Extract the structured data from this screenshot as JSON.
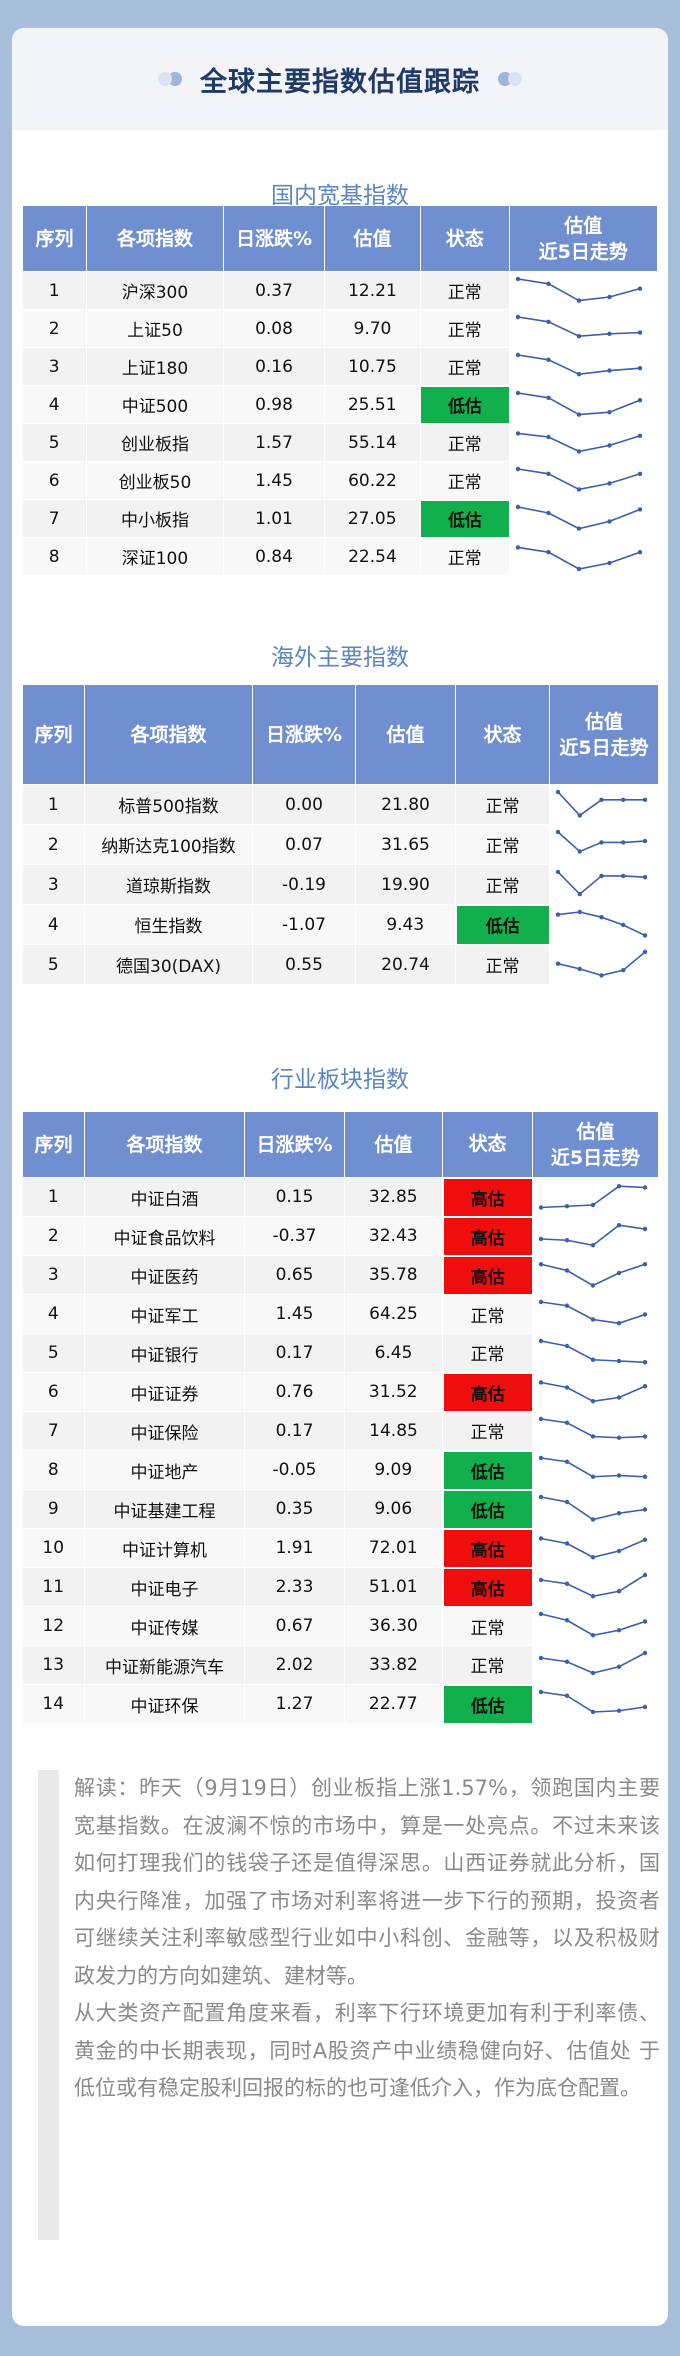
{
  "title": "全球主要指数估值跟踪",
  "sections": [
    {
      "key": "domestic",
      "title": "国内宽基指数",
      "columns": [
        "序列",
        "各项指数",
        "日涨跌%",
        "估值",
        "状态",
        "估值\n近5日走势"
      ],
      "rows": [
        {
          "no": "1",
          "name": "沪深300",
          "change": "0.37",
          "valuation": "12.21",
          "status": "正常",
          "trend": [
            3,
            2.6,
            1.2,
            1.5,
            2.2
          ]
        },
        {
          "no": "2",
          "name": "上证50",
          "change": "0.08",
          "valuation": "9.70",
          "status": "正常",
          "trend": [
            3,
            2.6,
            1.4,
            1.6,
            1.7
          ]
        },
        {
          "no": "3",
          "name": "上证180",
          "change": "0.16",
          "valuation": "10.75",
          "status": "正常",
          "trend": [
            3,
            2.6,
            1.4,
            1.7,
            1.9
          ]
        },
        {
          "no": "4",
          "name": "中证500",
          "change": "0.98",
          "valuation": "25.51",
          "status": "低估",
          "trend": [
            3,
            2.6,
            1.2,
            1.4,
            2.4
          ]
        },
        {
          "no": "5",
          "name": "创业板指",
          "change": "1.57",
          "valuation": "55.14",
          "status": "正常",
          "trend": [
            2.8,
            2.5,
            1.3,
            1.8,
            2.6
          ]
        },
        {
          "no": "6",
          "name": "创业板50",
          "change": "1.45",
          "valuation": "60.22",
          "status": "正常",
          "trend": [
            3,
            2.6,
            1.3,
            1.8,
            2.6
          ]
        },
        {
          "no": "7",
          "name": "中小板指",
          "change": "1.01",
          "valuation": "27.05",
          "status": "低估",
          "trend": [
            3,
            2.5,
            1.2,
            1.8,
            2.8
          ]
        },
        {
          "no": "8",
          "name": "深证100",
          "change": "0.84",
          "valuation": "22.54",
          "status": "正常",
          "trend": [
            2.8,
            2.4,
            1.0,
            1.5,
            2.4
          ]
        }
      ]
    },
    {
      "key": "overseas",
      "title": "海外主要指数",
      "columns": [
        "序列",
        "各项指数",
        "日涨跌%",
        "估值",
        "状态",
        "估值\n近5日走势"
      ],
      "rows": [
        {
          "no": "1",
          "name": "标普500指数",
          "change": "0.00",
          "valuation": "21.80",
          "status": "正常",
          "trend": [
            3,
            1.2,
            2.4,
            2.4,
            2.4
          ]
        },
        {
          "no": "2",
          "name": "纳斯达克100指数",
          "change": "0.07",
          "valuation": "31.65",
          "status": "正常",
          "trend": [
            3,
            1.5,
            2.2,
            2.2,
            2.3
          ]
        },
        {
          "no": "3",
          "name": "道琼斯指数",
          "change": "-0.19",
          "valuation": "19.90",
          "status": "正常",
          "trend": [
            3,
            1.3,
            2.7,
            2.7,
            2.6
          ]
        },
        {
          "no": "4",
          "name": "恒生指数",
          "change": "-1.07",
          "valuation": "9.43",
          "status": "低估",
          "trend": [
            2.8,
            3,
            2.6,
            2.0,
            1.2
          ]
        },
        {
          "no": "5",
          "name": "德国30(DAX)",
          "change": "0.55",
          "valuation": "20.74",
          "status": "正常",
          "trend": [
            2.1,
            1.7,
            1.2,
            1.6,
            3
          ]
        }
      ]
    },
    {
      "key": "industry",
      "title": "行业板块指数",
      "columns": [
        "序列",
        "各项指数",
        "日涨跌%",
        "估值",
        "状态",
        "估值\n近5日走势"
      ],
      "rows": [
        {
          "no": "1",
          "name": "中证白酒",
          "change": "0.15",
          "valuation": "32.85",
          "status": "高估",
          "trend": [
            1.2,
            1.3,
            1.4,
            2.9,
            2.8
          ]
        },
        {
          "no": "2",
          "name": "中证食品饮料",
          "change": "-0.37",
          "valuation": "32.43",
          "status": "高估",
          "trend": [
            1.8,
            1.7,
            1.3,
            2.9,
            2.6
          ]
        },
        {
          "no": "3",
          "name": "中证医药",
          "change": "0.65",
          "valuation": "35.78",
          "status": "高估",
          "trend": [
            2.9,
            2.4,
            1.2,
            2.2,
            2.9
          ]
        },
        {
          "no": "4",
          "name": "中证军工",
          "change": "1.45",
          "valuation": "64.25",
          "status": "正常",
          "trend": [
            3,
            2.7,
            1.6,
            1.3,
            2.0
          ]
        },
        {
          "no": "5",
          "name": "中证银行",
          "change": "0.17",
          "valuation": "6.45",
          "status": "正常",
          "trend": [
            3,
            2.6,
            1.5,
            1.4,
            1.3
          ]
        },
        {
          "no": "6",
          "name": "中证证券",
          "change": "0.76",
          "valuation": "31.52",
          "status": "高估",
          "trend": [
            2.8,
            2.4,
            1.3,
            1.6,
            2.5
          ]
        },
        {
          "no": "7",
          "name": "中证保险",
          "change": "0.17",
          "valuation": "14.85",
          "status": "正常",
          "trend": [
            3,
            2.7,
            1.6,
            1.5,
            1.6
          ]
        },
        {
          "no": "8",
          "name": "中证地产",
          "change": "-0.05",
          "valuation": "9.09",
          "status": "低估",
          "trend": [
            3,
            2.7,
            1.5,
            1.6,
            1.5
          ]
        },
        {
          "no": "9",
          "name": "中证基建工程",
          "change": "0.35",
          "valuation": "9.06",
          "status": "低估",
          "trend": [
            3,
            2.6,
            1.2,
            1.7,
            2.0
          ]
        },
        {
          "no": "10",
          "name": "中证计算机",
          "change": "1.91",
          "valuation": "72.01",
          "status": "高估",
          "trend": [
            2.8,
            2.4,
            1.3,
            1.8,
            2.7
          ]
        },
        {
          "no": "11",
          "name": "中证电子",
          "change": "2.33",
          "valuation": "51.01",
          "status": "高估",
          "trend": [
            2.6,
            2.3,
            1.3,
            1.7,
            3
          ]
        },
        {
          "no": "12",
          "name": "中证传媒",
          "change": "0.67",
          "valuation": "36.30",
          "status": "正常",
          "trend": [
            3,
            2.5,
            1.3,
            1.7,
            2.4
          ]
        },
        {
          "no": "13",
          "name": "中证新能源汽车",
          "change": "2.02",
          "valuation": "33.82",
          "status": "正常",
          "trend": [
            2.6,
            2.3,
            1.4,
            1.9,
            3
          ]
        },
        {
          "no": "14",
          "name": "中证环保",
          "change": "1.27",
          "valuation": "22.77",
          "status": "低估",
          "trend": [
            3,
            2.7,
            1.4,
            1.5,
            1.8
          ]
        }
      ]
    }
  ],
  "commentary": [
    "解读：昨天（9月19日）创业板指上涨1.57%，领跑国内主要宽基指数。在波澜不惊的市场中，算是一处亮点。不过未来该如何打理我们的钱袋子还是值得深思。山西证券就此分析，国内央行降准，加强了市场对利率将进一步下行的预期，投资者可继续关注利率敏感型行业如中小科创、金融等，以及积极财政发力的方向如建筑、建材等。",
    "从大类资产配置角度来看，利率下行环境更加有利于利率债、黄金的中长期表现，同时A股资产中业绩稳健向好、估值处 于低位或有稳定股利回报的标的也可逢低介入，作为底仓配置。"
  ],
  "colors": {
    "header_bg": "#6f8fd1",
    "section_title": "#5b86c2",
    "low": "#12b04c",
    "high": "#f00d0d",
    "spark": "#3a5fae"
  }
}
